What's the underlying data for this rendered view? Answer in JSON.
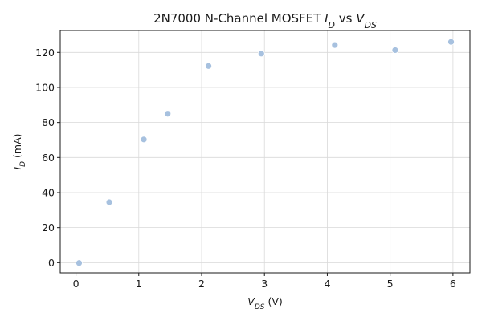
{
  "chart_data": {
    "type": "scatter",
    "title_parts": [
      {
        "text": "2N7000 N-Channel MOSFET ",
        "italic": false
      },
      {
        "text": "I",
        "italic": true
      },
      {
        "text": "D",
        "italic": true,
        "sub": true
      },
      {
        "text": " vs ",
        "italic": false
      },
      {
        "text": "V",
        "italic": true
      },
      {
        "text": "DS",
        "italic": true,
        "sub": true
      }
    ],
    "xlabel_parts": [
      {
        "text": "V",
        "italic": true
      },
      {
        "text": "DS",
        "italic": true,
        "sub": true
      },
      {
        "text": " (V)",
        "italic": false
      }
    ],
    "ylabel_parts": [
      {
        "text": "I",
        "italic": true
      },
      {
        "text": "D",
        "italic": true,
        "sub": true
      },
      {
        "text": " (mA)",
        "italic": false
      }
    ],
    "x": [
      0.05,
      0.53,
      1.08,
      1.46,
      2.11,
      2.95,
      4.12,
      5.08,
      5.97
    ],
    "y": [
      -0.2,
      34.5,
      70.3,
      85.0,
      112.2,
      119.3,
      124.2,
      121.3,
      126.0
    ],
    "xlim": [
      -0.25,
      6.27
    ],
    "ylim": [
      -5.8,
      132.5
    ],
    "xticks": [
      0,
      1,
      2,
      3,
      4,
      5,
      6
    ],
    "yticks": [
      0,
      20,
      40,
      60,
      80,
      100,
      120
    ],
    "grid": true,
    "marker_color": "#a7c1df",
    "marker_edge_color": "#ffffff"
  }
}
